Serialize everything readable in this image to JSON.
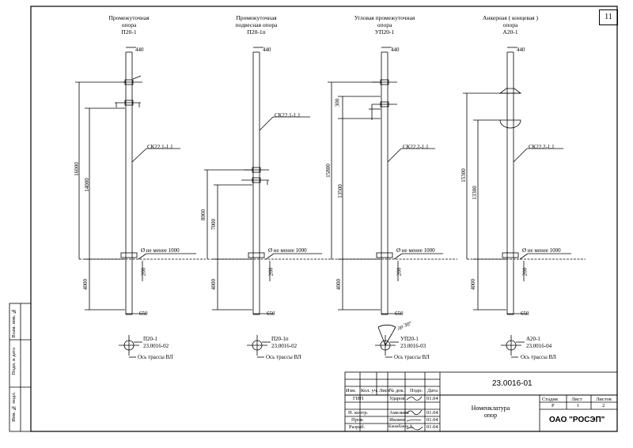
{
  "sheet_number": "11",
  "poles": [
    {
      "title": [
        "Промежуточная",
        "опора",
        "П20-1"
      ],
      "clamp": "СК22.1-1.1",
      "dim_top": "440",
      "h1": "16000",
      "h2": "14000",
      "depth": "4000",
      "dia_note": "Ø не менее 1000",
      "d200": "200",
      "base": "650",
      "code": "П20-1",
      "ref": "23.0016-02",
      "axis": "Ось трассы ВЛ"
    },
    {
      "title": [
        "Промежуточная",
        "подвесная опора",
        "П20-1п"
      ],
      "clamp": "СК22.1-1.1",
      "dim_top": "440",
      "h1": "8000",
      "h2": "7000",
      "depth": "4000",
      "dia_note": "Ø не менее 1000",
      "d200": "200",
      "base": "650",
      "code": "П20-1п",
      "ref": "23.0016-02",
      "axis": "Ось трассы ВЛ"
    },
    {
      "title": [
        "Угловая промежуточная",
        "опора",
        "УП20-1"
      ],
      "clamp": "СК22.2-1.1",
      "dim_top": "440",
      "h1": "15800",
      "h2": "13500",
      "h3": "300",
      "depth": "4000",
      "dia_note": "Ø не менее 1000",
      "d200": "200",
      "base": "650",
      "code": "УП20-1",
      "ref": "23.0016-03",
      "axis": "Ось трассы ВЛ",
      "angle": "до 30°"
    },
    {
      "title": [
        "Анкерная ( концевая )",
        "опора",
        "А20-1"
      ],
      "clamp": "СК22.2-1.1",
      "dim_top": "440",
      "h1": "15300",
      "h2": "13300",
      "depth": "4000",
      "dia_note": "Ø не менее 1000",
      "d200": "200",
      "base": "650",
      "code": "А20-1",
      "ref": "23.0016-04",
      "axis": "Ось трассы ВЛ"
    }
  ],
  "side_stamp": {
    "a": "Взам. инв. №",
    "b": "Подп. и дата",
    "c": "Инв. № подл."
  },
  "title_block": {
    "doc_code": "23.0016-01",
    "headers": [
      "Изм.",
      "Кол. уч.",
      "Лист",
      "№ док.",
      "Подп.",
      "Дата"
    ],
    "rows": [
      {
        "role": "ГИП",
        "name": "Ударов",
        "date": "01.04"
      },
      {
        "role": "Н. контр.",
        "name": "Амелина",
        "date": "01.04"
      },
      {
        "role": "Пров.",
        "name": "Ивлиев",
        "date": "01.04"
      },
      {
        "role": "Разраб.",
        "name": "Каимбаева А.",
        "date": "01.04"
      }
    ],
    "name": [
      "Номенклатура",
      "опор"
    ],
    "stage_label": "Стадия",
    "sheet_label": "Лист",
    "sheets_label": "Листов",
    "stage": "Р",
    "sheet": "1",
    "sheets": "2",
    "org": "ОАО \"РОСЭП\""
  }
}
